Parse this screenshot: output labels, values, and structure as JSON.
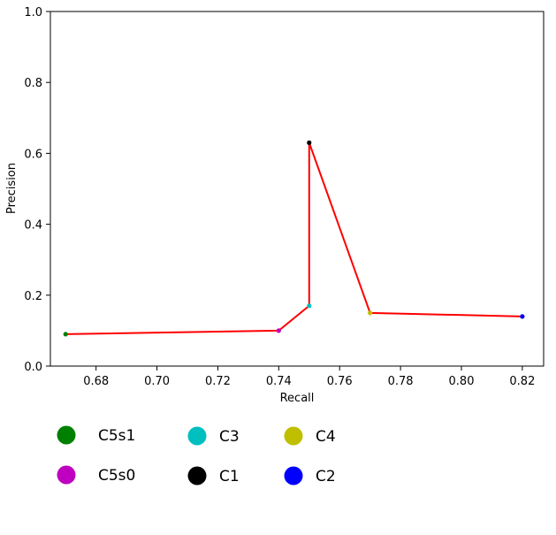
{
  "chart_data": {
    "type": "line",
    "xlabel": "Recall",
    "ylabel": "Precision",
    "xlim": [
      0.665,
      0.827
    ],
    "ylim": [
      0.0,
      1.0
    ],
    "x_ticks": [
      0.68,
      0.7,
      0.72,
      0.74,
      0.76,
      0.78,
      0.8,
      0.82
    ],
    "x_tick_labels": [
      "0.68",
      "0.70",
      "0.72",
      "0.74",
      "0.76",
      "0.78",
      "0.80",
      "0.82"
    ],
    "y_ticks": [
      0.0,
      0.2,
      0.4,
      0.6,
      0.8,
      1.0
    ],
    "y_tick_labels": [
      "0.0",
      "0.2",
      "0.4",
      "0.6",
      "0.8",
      "1.0"
    ],
    "grid": false,
    "line_color": "#ff0000",
    "points": [
      {
        "name": "C5s1",
        "x": 0.67,
        "y": 0.09,
        "color": "#008000"
      },
      {
        "name": "C5s0",
        "x": 0.74,
        "y": 0.1,
        "color": "#c000c0"
      },
      {
        "name": "C3",
        "x": 0.75,
        "y": 0.17,
        "color": "#00bfbf"
      },
      {
        "name": "C1",
        "x": 0.75,
        "y": 0.63,
        "color": "#000000"
      },
      {
        "name": "C4",
        "x": 0.77,
        "y": 0.15,
        "color": "#bfbf00"
      },
      {
        "name": "C2",
        "x": 0.82,
        "y": 0.14,
        "color": "#0000ff"
      }
    ],
    "legend": {
      "placement": "below",
      "entries": [
        {
          "label": "C5s1",
          "color": "#008000"
        },
        {
          "label": "C3",
          "color": "#00bfbf"
        },
        {
          "label": "C4",
          "color": "#bfbf00"
        },
        {
          "label": "C5s0",
          "color": "#c000c0"
        },
        {
          "label": "C1",
          "color": "#000000"
        },
        {
          "label": "C2",
          "color": "#0000ff"
        }
      ]
    }
  }
}
